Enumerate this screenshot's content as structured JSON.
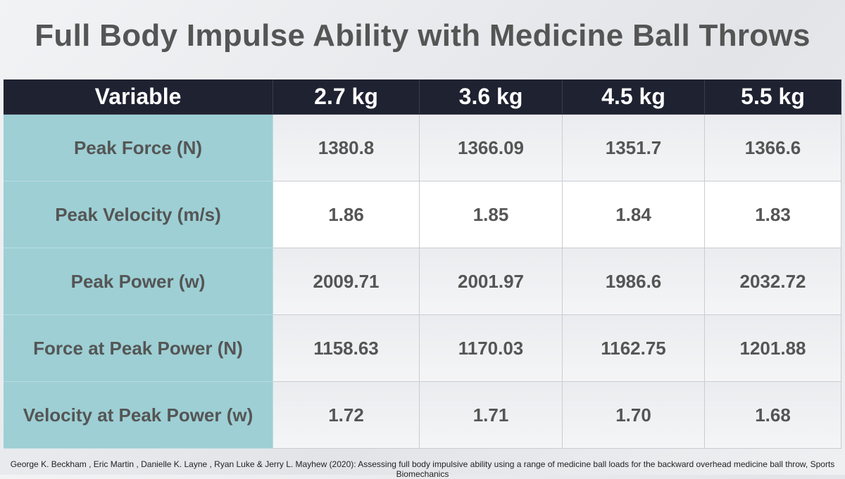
{
  "title": "Full Body Impulse Ability with Medicine Ball Throws",
  "table": {
    "header": [
      "Variable",
      "2.7 kg",
      "3.6 kg",
      "4.5 kg",
      "5.5 kg"
    ],
    "rows": [
      [
        "Peak Force (N)",
        "1380.8",
        "1366.09",
        "1351.7",
        "1366.6"
      ],
      [
        "Peak Velocity (m/s)",
        "1.86",
        "1.85",
        "1.84",
        "1.83"
      ],
      [
        "Peak Power (w)",
        "2009.71",
        "2001.97",
        "1986.6",
        "2032.72"
      ],
      [
        "Force at Peak Power (N)",
        "1158.63",
        "1170.03",
        "1162.75",
        "1201.88"
      ],
      [
        "Velocity at Peak Power (w)",
        "1.72",
        "1.71",
        "1.70",
        "1.68"
      ]
    ]
  },
  "citation": "George K. Beckham , Eric Martin , Danielle K. Layne , Ryan Luke & Jerry L. Mayhew (2020): Assessing full body impulsive ability using a range of medicine ball loads for the backward overhead medicine ball throw, Sports Biomechanics"
}
